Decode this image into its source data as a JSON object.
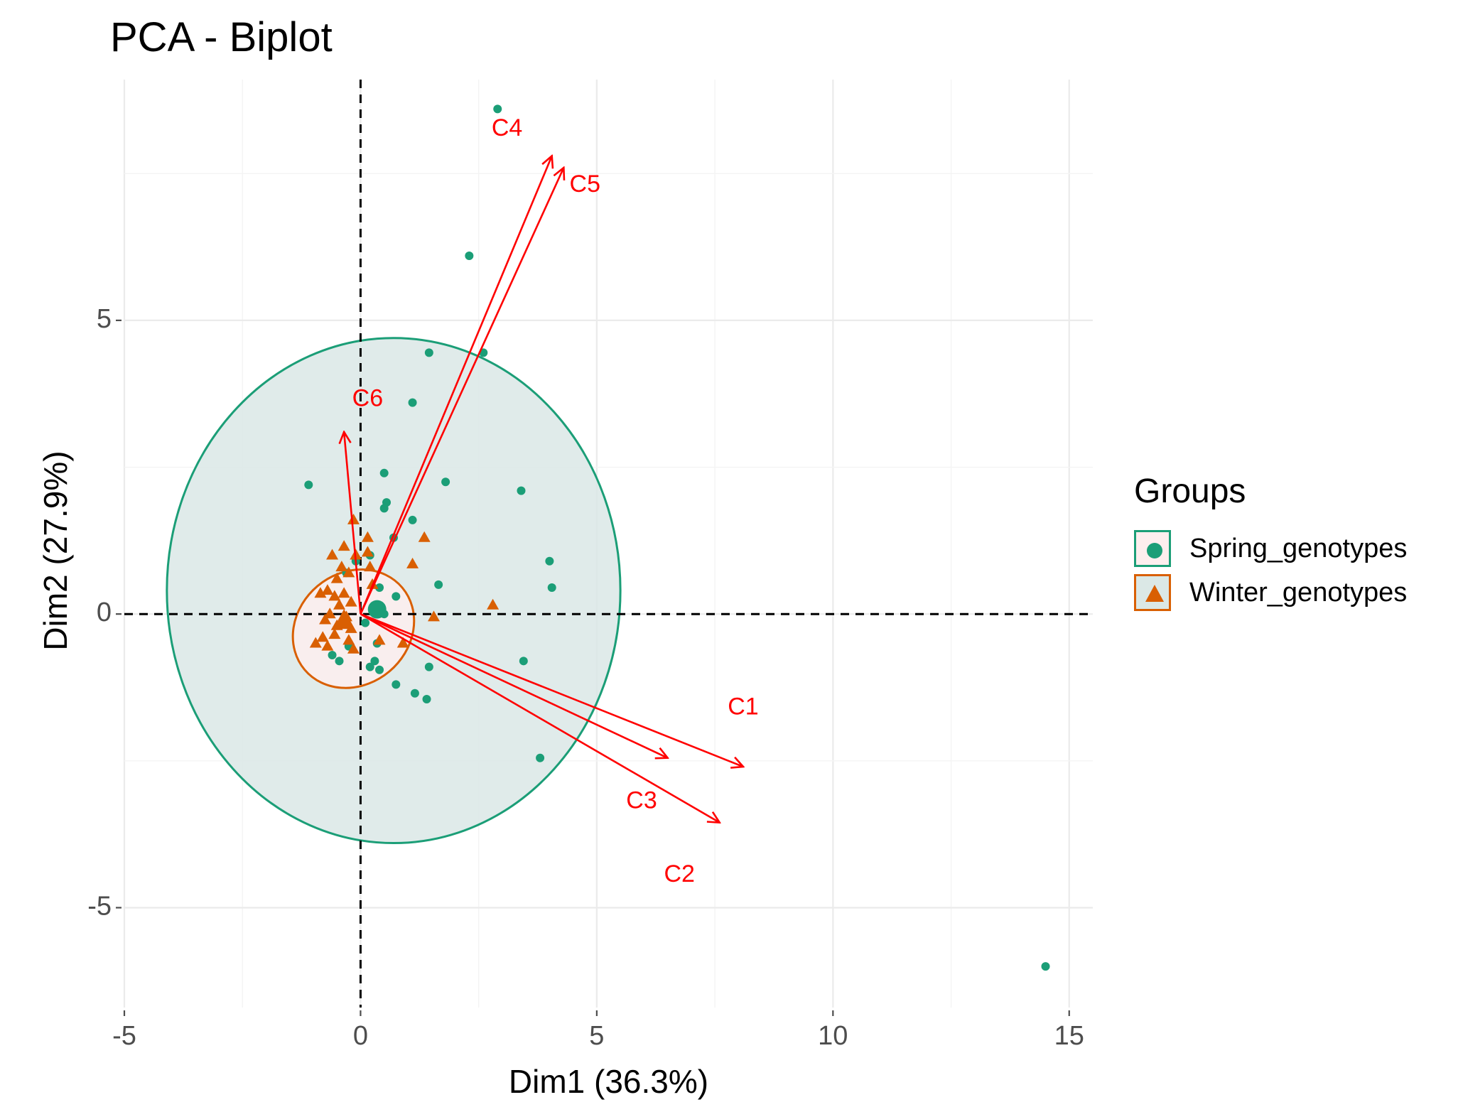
{
  "chart_data": {
    "type": "scatter",
    "title": "PCA - Biplot",
    "xlabel": "Dim1 (36.3%)",
    "ylabel": "Dim2 (27.9%)",
    "xlim": [
      -5,
      15.5
    ],
    "ylim": [
      -6.7,
      9.1
    ],
    "xticks": [
      -5,
      0,
      5,
      10,
      15
    ],
    "yticks": [
      -5,
      0,
      5
    ],
    "xtick_labels": [
      "-5",
      "0",
      "5",
      "10",
      "15"
    ],
    "ytick_labels": [
      "-5",
      "0",
      "5"
    ],
    "grid": true,
    "reference_lines": {
      "x": 0,
      "y": 0,
      "style": "dashed"
    },
    "legend": {
      "title": "Groups",
      "placement": "right"
    },
    "series": [
      {
        "name": "Spring_genotypes",
        "marker": "circle",
        "color": "#1b9e77",
        "fill": "#dbe8e6",
        "points": [
          [
            2.9,
            8.6
          ],
          [
            2.3,
            6.1
          ],
          [
            1.45,
            4.45
          ],
          [
            2.6,
            4.45
          ],
          [
            1.1,
            3.6
          ],
          [
            -1.1,
            2.2
          ],
          [
            0.5,
            2.4
          ],
          [
            1.8,
            2.25
          ],
          [
            3.4,
            2.1
          ],
          [
            0.55,
            1.9
          ],
          [
            0.5,
            1.8
          ],
          [
            1.1,
            1.6
          ],
          [
            0.7,
            1.3
          ],
          [
            4.0,
            0.9
          ],
          [
            1.65,
            0.5
          ],
          [
            4.05,
            0.45
          ],
          [
            0.4,
            0.45
          ],
          [
            0.75,
            0.3
          ],
          [
            0.3,
            0.15
          ],
          [
            0.5,
            0.0
          ],
          [
            0.1,
            -0.15
          ],
          [
            0.35,
            -0.5
          ],
          [
            -0.6,
            -0.7
          ],
          [
            -0.45,
            -0.8
          ],
          [
            0.3,
            -0.8
          ],
          [
            0.2,
            -0.9
          ],
          [
            0.4,
            -0.95
          ],
          [
            0.75,
            -1.2
          ],
          [
            1.45,
            -0.9
          ],
          [
            3.45,
            -0.8
          ],
          [
            1.15,
            -1.35
          ],
          [
            1.4,
            -1.45
          ],
          [
            3.8,
            -2.45
          ],
          [
            14.5,
            -6.0
          ],
          [
            -0.1,
            0.9
          ],
          [
            -0.3,
            0.7
          ],
          [
            0.2,
            1.0
          ],
          [
            -0.25,
            -0.55
          ]
        ],
        "centroid": [
          0.35,
          0.08
        ],
        "ellipse": {
          "center": [
            0.7,
            0.4
          ],
          "rx": 4.8,
          "ry": 4.3,
          "rotation_deg": 0
        }
      },
      {
        "name": "Winter_genotypes",
        "marker": "triangle",
        "color": "#d95f02",
        "fill": "#fdeeee",
        "points": [
          [
            -0.15,
            1.6
          ],
          [
            0.15,
            1.3
          ],
          [
            -0.35,
            1.15
          ],
          [
            1.35,
            1.3
          ],
          [
            0.15,
            1.05
          ],
          [
            1.1,
            0.85
          ],
          [
            -0.1,
            1.0
          ],
          [
            -0.4,
            0.8
          ],
          [
            0.2,
            0.8
          ],
          [
            -0.25,
            0.7
          ],
          [
            -0.5,
            0.6
          ],
          [
            -0.7,
            0.4
          ],
          [
            -0.35,
            0.35
          ],
          [
            -0.55,
            0.3
          ],
          [
            -0.2,
            0.2
          ],
          [
            -0.45,
            0.15
          ],
          [
            -0.65,
            0.0
          ],
          [
            -0.3,
            -0.05
          ],
          [
            -0.75,
            -0.1
          ],
          [
            -0.5,
            -0.2
          ],
          [
            -0.2,
            -0.25
          ],
          [
            -0.8,
            -0.4
          ],
          [
            -0.55,
            -0.35
          ],
          [
            -0.25,
            -0.45
          ],
          [
            -0.95,
            -0.5
          ],
          [
            -0.7,
            -0.55
          ],
          [
            0.4,
            -0.45
          ],
          [
            0.9,
            -0.5
          ],
          [
            1.55,
            -0.05
          ],
          [
            2.8,
            0.15
          ],
          [
            -0.6,
            1.0
          ],
          [
            -0.85,
            0.35
          ],
          [
            0.25,
            0.5
          ],
          [
            -0.15,
            -0.6
          ]
        ],
        "centroid": [
          -0.35,
          -0.12
        ],
        "ellipse": {
          "center": [
            -0.15,
            -0.25
          ],
          "rx": 1.35,
          "ry": 0.95,
          "rotation_deg": -40
        }
      }
    ],
    "variables": [
      {
        "name": "C1",
        "x": 8.1,
        "y": -2.6
      },
      {
        "name": "C2",
        "x": 7.6,
        "y": -3.55
      },
      {
        "name": "C3",
        "x": 6.5,
        "y": -2.45
      },
      {
        "name": "C4",
        "x": 4.05,
        "y": 7.8
      },
      {
        "name": "C5",
        "x": 4.3,
        "y": 7.6
      },
      {
        "name": "C6",
        "x": -0.35,
        "y": 3.1
      }
    ]
  }
}
